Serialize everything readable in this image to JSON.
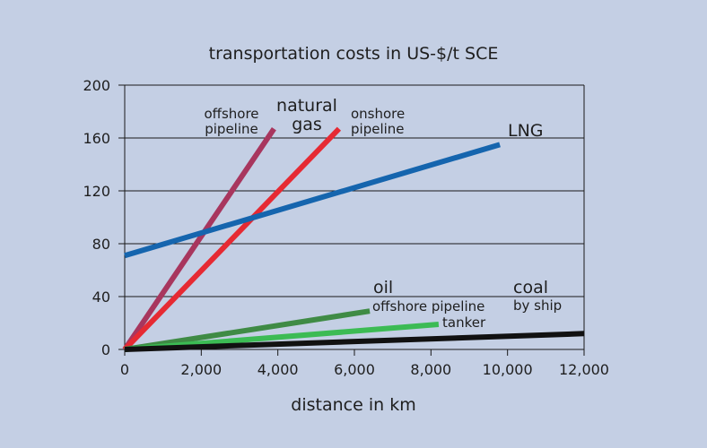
{
  "chart_data": {
    "type": "line",
    "title": "transportation costs in US-$/t SCE",
    "xlabel": "distance in km",
    "ylabel": "",
    "xlim": [
      0,
      12000
    ],
    "ylim": [
      0,
      200
    ],
    "x_ticks": [
      0,
      2000,
      4000,
      6000,
      8000,
      10000,
      12000
    ],
    "x_tick_labels": [
      "0",
      "2,000",
      "4,000",
      "6,000",
      "8,000",
      "10,000",
      "12,000"
    ],
    "y_ticks": [
      0,
      40,
      80,
      120,
      160,
      200
    ],
    "y_tick_labels": [
      "0",
      "40",
      "80",
      "120",
      "160",
      "200"
    ],
    "grid": "horizontal",
    "legend": "none (direct labels)",
    "series": [
      {
        "name": "natural gas offshore pipeline",
        "color": "#a8365e",
        "points": [
          [
            0,
            0
          ],
          [
            3900,
            167
          ]
        ]
      },
      {
        "name": "natural gas onshore pipeline",
        "color": "#e62a33",
        "points": [
          [
            0,
            0
          ],
          [
            5600,
            167
          ]
        ]
      },
      {
        "name": "LNG",
        "color": "#1565ae",
        "points": [
          [
            0,
            71
          ],
          [
            9800,
            155
          ]
        ]
      },
      {
        "name": "oil offshore pipeline",
        "color": "#3f8b45",
        "points": [
          [
            0,
            0
          ],
          [
            6400,
            29
          ]
        ]
      },
      {
        "name": "oil tanker",
        "color": "#3cbb54",
        "points": [
          [
            0,
            0
          ],
          [
            8200,
            19
          ]
        ]
      },
      {
        "name": "coal by ship",
        "color": "#111111",
        "points": [
          [
            0,
            0
          ],
          [
            12000,
            12
          ]
        ]
      }
    ]
  },
  "annotations": {
    "natural_gas_line1": "natural",
    "natural_gas_line2": "gas",
    "offshore_line1": "offshore",
    "offshore_line2": "pipeline",
    "onshore_line1": "onshore",
    "onshore_line2": "pipeline",
    "lng": "LNG",
    "oil": "oil",
    "oil_offshore": "offshore pipeline",
    "oil_tanker": "tanker",
    "coal": "coal",
    "coal_ship": "by ship"
  }
}
